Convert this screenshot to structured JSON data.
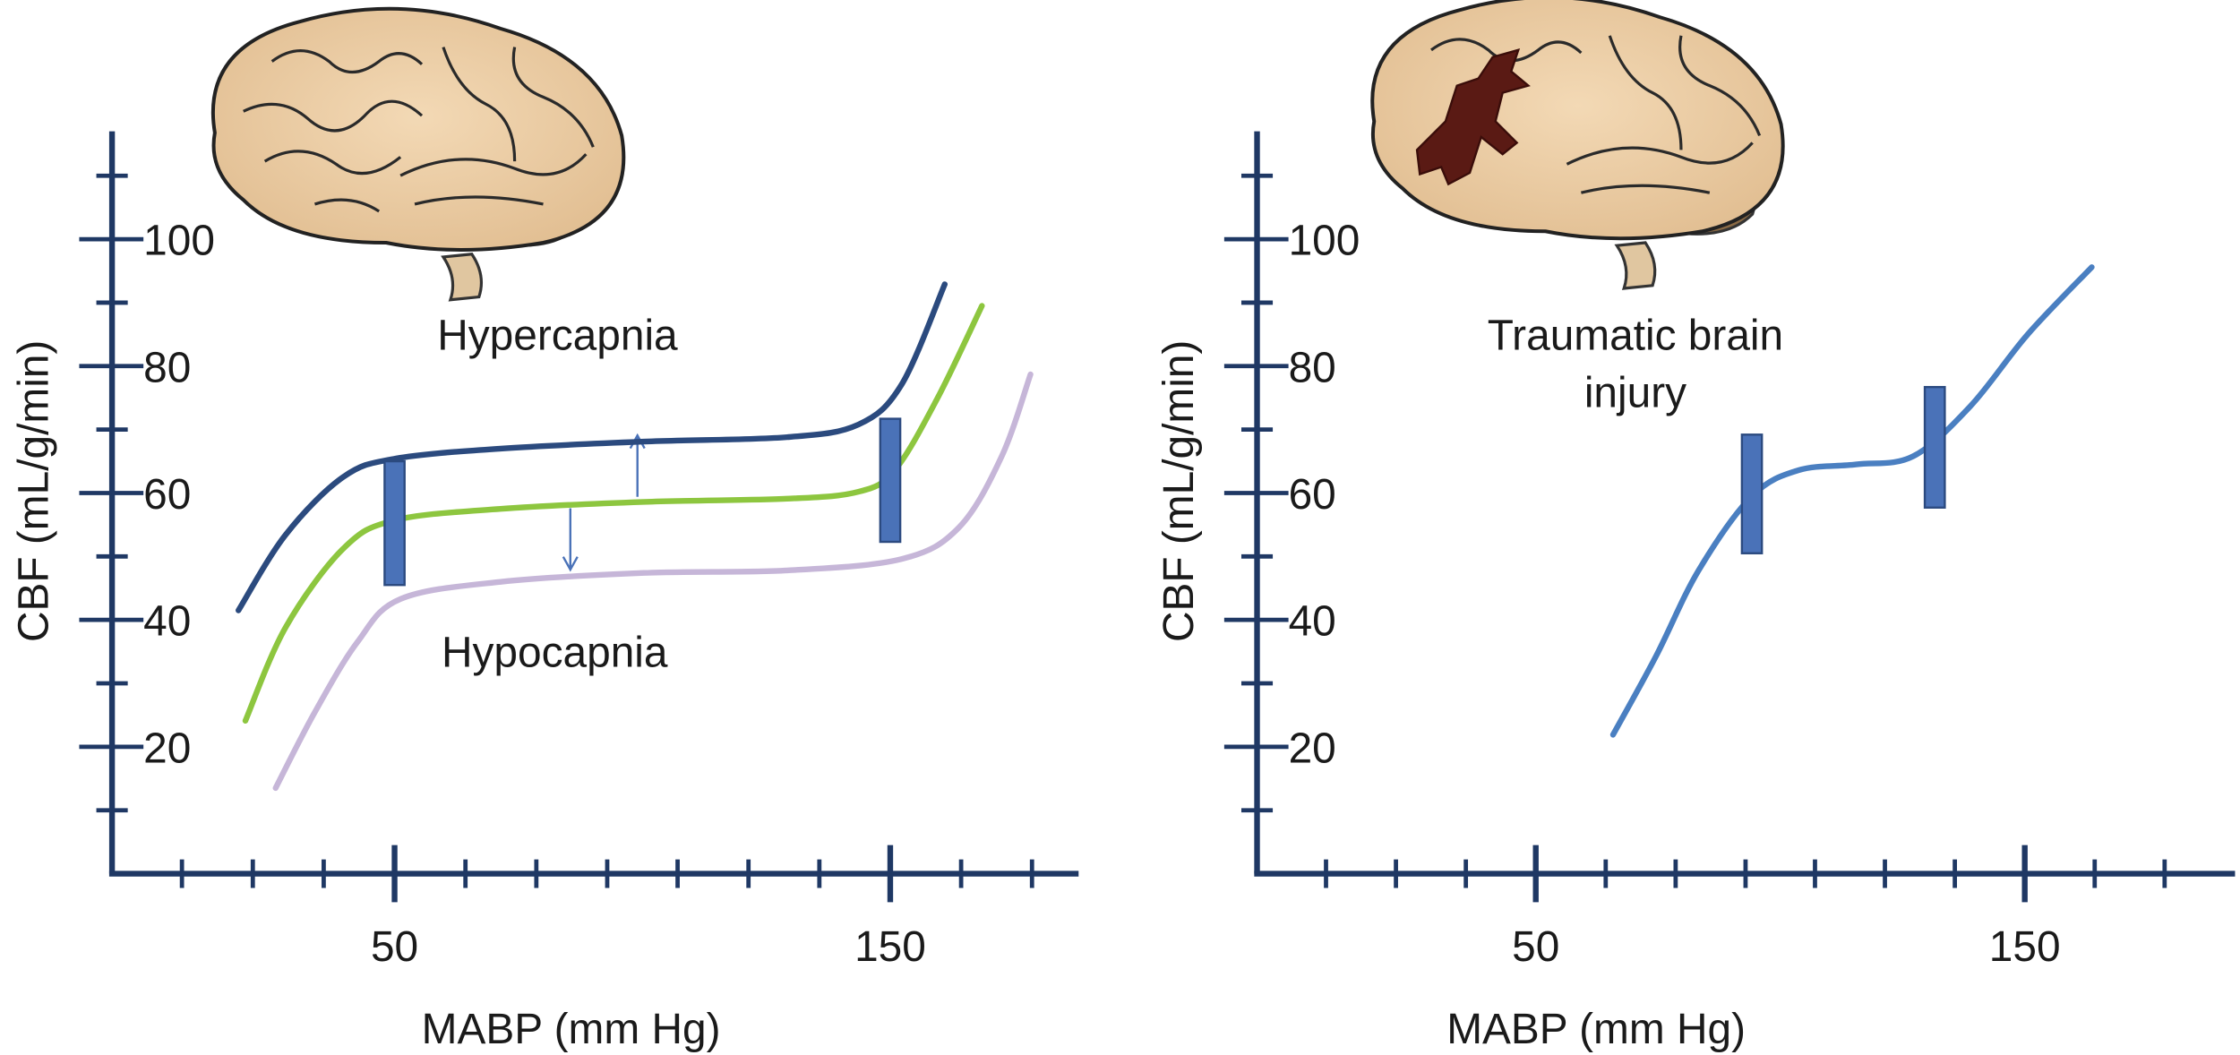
{
  "chart_data": [
    {
      "type": "line",
      "xlabel": "MABP (mm Hg)",
      "ylabel": "CBF (mL/g/min)",
      "xlim": [
        -7,
        188
      ],
      "xticks": [
        50,
        150
      ],
      "xminorticks": [
        7.1,
        21.4,
        35.7,
        64.3,
        78.6,
        92.9,
        107.1,
        121.4,
        135.7,
        164.3,
        178.6
      ],
      "ylim": [
        0,
        117
      ],
      "yticks": [
        20,
        40,
        60,
        80,
        100
      ],
      "yminorticks": [
        10,
        30,
        50,
        70,
        90,
        110
      ],
      "annotations": [
        "Hypercapnia",
        "Hypocapnia"
      ],
      "series": [
        {
          "color": "#2b4a7e",
          "x": [
            18.5,
            28.0,
            39.6,
            50,
            71.4,
            100.3,
            129.2,
            143.6,
            152.3,
            161.0
          ],
          "values": [
            41.5,
            53.4,
            62.5,
            65.4,
            67.0,
            68.1,
            68.8,
            70.8,
            77.1,
            92.9
          ]
        },
        {
          "color": "#8dc63f",
          "x": [
            19.9,
            28.0,
            39.6,
            50,
            71.4,
            100.3,
            129.2,
            143.6,
            150.9,
            159.5,
            168.5
          ],
          "values": [
            24.1,
            38.8,
            51.2,
            55.7,
            57.5,
            58.6,
            59.1,
            60.2,
            63.6,
            74.9,
            89.5
          ]
        },
        {
          "color": "#c6b6d8",
          "x": [
            26.0,
            33.8,
            42.5,
            51.2,
            71.4,
            100.3,
            129.2,
            152.3,
            163.9,
            172.5,
            178.3
          ],
          "values": [
            13.5,
            25.3,
            36.5,
            43.3,
            46.0,
            47.4,
            47.8,
            49.6,
            54.6,
            65.8,
            78.7
          ]
        }
      ],
      "markers": [
        {
          "x": 50,
          "ylow": 45.5,
          "yhigh": 65.0
        },
        {
          "x": 150,
          "ylow": 52.3,
          "yhigh": 71.7
        }
      ],
      "marker_color": "#4a72b8"
    },
    {
      "type": "line",
      "xlabel": "MABP (mm Hg)",
      "ylabel": "CBF (mL/g/min)",
      "xlim": [
        -7,
        193
      ],
      "xticks": [
        50,
        150
      ],
      "xminorticks": [
        7.1,
        21.4,
        35.7,
        64.3,
        78.6,
        92.9,
        107.1,
        121.4,
        135.7,
        164.3,
        178.6
      ],
      "ylim": [
        0,
        117
      ],
      "yticks": [
        20,
        40,
        60,
        80,
        100
      ],
      "yminorticks": [
        10,
        30,
        50,
        70,
        90,
        110
      ],
      "annotations": [
        [
          "Traumatic brain",
          "injury"
        ]
      ],
      "series": [
        {
          "color": "#4a7fc1",
          "x": [
            65.8,
            74.6,
            83.3,
            94.2,
            103.8,
            115.5,
            127.2,
            138.9,
            150.6,
            163.7
          ],
          "values": [
            21.9,
            34.3,
            47.8,
            59.5,
            63.6,
            64.5,
            65.8,
            73.7,
            85.0,
            95.6
          ]
        }
      ],
      "markers": [
        {
          "x": 94.2,
          "ylow": 50.5,
          "yhigh": 69.2
        },
        {
          "x": 131.6,
          "ylow": 57.7,
          "yhigh": 76.7
        }
      ],
      "marker_color": "#4a72b8"
    }
  ]
}
